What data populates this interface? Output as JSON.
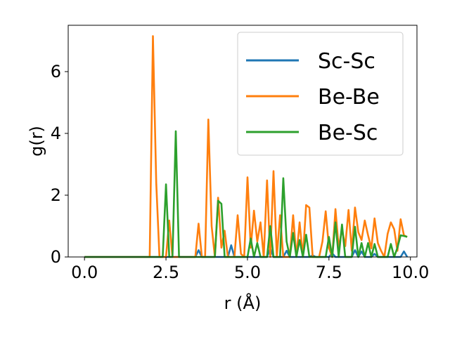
{
  "chart_data": {
    "type": "line",
    "xlabel": "r (Å)",
    "ylabel": "g(r)",
    "xlim": [
      -0.5,
      10.2
    ],
    "ylim": [
      0,
      7.5
    ],
    "xticks": [
      0.0,
      2.5,
      5.0,
      7.5,
      10.0
    ],
    "xtick_labels": [
      "0.0",
      "2.5",
      "5.0",
      "7.5",
      "10.0"
    ],
    "yticks": [
      0,
      2,
      4,
      6
    ],
    "ytick_labels": [
      "0",
      "2",
      "4",
      "6"
    ],
    "grid": false,
    "legend_position": "top-right",
    "series": [
      {
        "name": "Sc-Sc",
        "color": "#1f77b4",
        "points": [
          [
            0,
            0
          ],
          [
            3.4,
            0
          ],
          [
            3.5,
            0.22
          ],
          [
            3.6,
            0
          ],
          [
            4.4,
            0
          ],
          [
            4.5,
            0.38
          ],
          [
            4.6,
            0
          ],
          [
            5.6,
            0
          ],
          [
            5.7,
            0.28
          ],
          [
            5.8,
            0
          ],
          [
            6.1,
            0
          ],
          [
            6.2,
            0.2
          ],
          [
            6.3,
            0
          ],
          [
            6.9,
            0
          ],
          [
            7.0,
            0.05
          ],
          [
            7.1,
            0
          ],
          [
            7.5,
            0
          ],
          [
            7.6,
            0.12
          ],
          [
            7.7,
            0
          ],
          [
            8.2,
            0
          ],
          [
            8.3,
            0.22
          ],
          [
            8.4,
            0
          ],
          [
            8.5,
            0.18
          ],
          [
            8.6,
            0
          ],
          [
            8.8,
            0
          ],
          [
            8.9,
            0.1
          ],
          [
            9.0,
            0
          ],
          [
            9.7,
            0
          ],
          [
            9.8,
            0.18
          ],
          [
            9.9,
            0
          ]
        ]
      },
      {
        "name": "Be-Be",
        "color": "#ff7f0e",
        "points": [
          [
            0,
            0
          ],
          [
            2.0,
            0
          ],
          [
            2.1,
            7.15
          ],
          [
            2.2,
            2.4
          ],
          [
            2.3,
            0
          ],
          [
            2.5,
            0
          ],
          [
            2.6,
            1.18
          ],
          [
            2.7,
            0
          ],
          [
            3.4,
            0
          ],
          [
            3.5,
            1.08
          ],
          [
            3.6,
            0
          ],
          [
            3.7,
            0
          ],
          [
            3.8,
            4.45
          ],
          [
            3.9,
            1.0
          ],
          [
            4.0,
            0
          ],
          [
            4.1,
            1.92
          ],
          [
            4.2,
            0.3
          ],
          [
            4.3,
            0.85
          ],
          [
            4.4,
            0
          ],
          [
            4.6,
            0
          ],
          [
            4.7,
            1.35
          ],
          [
            4.8,
            0.1
          ],
          [
            4.9,
            0
          ],
          [
            5.0,
            2.58
          ],
          [
            5.1,
            0.3
          ],
          [
            5.2,
            1.5
          ],
          [
            5.3,
            0.5
          ],
          [
            5.4,
            1.12
          ],
          [
            5.5,
            0
          ],
          [
            5.6,
            2.48
          ],
          [
            5.7,
            0
          ],
          [
            5.8,
            2.78
          ],
          [
            5.9,
            0
          ],
          [
            6.0,
            1.35
          ],
          [
            6.1,
            0
          ],
          [
            6.3,
            0
          ],
          [
            6.4,
            1.35
          ],
          [
            6.5,
            0
          ],
          [
            6.6,
            1.12
          ],
          [
            6.7,
            0
          ],
          [
            6.8,
            1.68
          ],
          [
            6.9,
            1.6
          ],
          [
            7.0,
            0
          ],
          [
            7.2,
            0
          ],
          [
            7.3,
            0.5
          ],
          [
            7.4,
            1.48
          ],
          [
            7.5,
            0.3
          ],
          [
            7.6,
            0
          ],
          [
            7.7,
            1.55
          ],
          [
            7.8,
            0.3
          ],
          [
            7.9,
            0.9
          ],
          [
            8.0,
            0.35
          ],
          [
            8.1,
            1.52
          ],
          [
            8.2,
            0.2
          ],
          [
            8.3,
            1.6
          ],
          [
            8.4,
            0.8
          ],
          [
            8.5,
            0.55
          ],
          [
            8.6,
            1.18
          ],
          [
            8.7,
            0.7
          ],
          [
            8.8,
            0.28
          ],
          [
            8.9,
            1.25
          ],
          [
            9.0,
            0.45
          ],
          [
            9.1,
            0.2
          ],
          [
            9.2,
            0
          ],
          [
            9.3,
            0.75
          ],
          [
            9.4,
            1.12
          ],
          [
            9.5,
            0.9
          ],
          [
            9.6,
            0.2
          ],
          [
            9.7,
            1.22
          ],
          [
            9.8,
            0.7
          ],
          [
            9.9,
            0.65
          ]
        ]
      },
      {
        "name": "Be-Sc",
        "color": "#2ca02c",
        "points": [
          [
            0,
            0
          ],
          [
            2.4,
            0
          ],
          [
            2.5,
            2.35
          ],
          [
            2.6,
            0
          ],
          [
            2.7,
            0
          ],
          [
            2.8,
            4.07
          ],
          [
            2.9,
            0
          ],
          [
            4.0,
            0
          ],
          [
            4.1,
            1.82
          ],
          [
            4.2,
            1.72
          ],
          [
            4.3,
            0
          ],
          [
            5.0,
            0
          ],
          [
            5.1,
            0.6
          ],
          [
            5.2,
            0
          ],
          [
            5.3,
            0.45
          ],
          [
            5.4,
            0
          ],
          [
            5.6,
            0
          ],
          [
            5.7,
            1.0
          ],
          [
            5.8,
            0
          ],
          [
            6.0,
            0
          ],
          [
            6.1,
            2.55
          ],
          [
            6.2,
            0.5
          ],
          [
            6.3,
            0
          ],
          [
            6.4,
            0.78
          ],
          [
            6.5,
            0
          ],
          [
            6.6,
            0.55
          ],
          [
            6.7,
            0
          ],
          [
            6.8,
            0.72
          ],
          [
            6.9,
            0
          ],
          [
            7.4,
            0
          ],
          [
            7.5,
            0.65
          ],
          [
            7.6,
            0
          ],
          [
            7.7,
            1.12
          ],
          [
            7.8,
            0
          ],
          [
            7.9,
            1.05
          ],
          [
            8.0,
            0
          ],
          [
            8.2,
            0
          ],
          [
            8.3,
            0.98
          ],
          [
            8.4,
            0
          ],
          [
            8.5,
            0.45
          ],
          [
            8.6,
            0
          ],
          [
            8.7,
            0.45
          ],
          [
            8.8,
            0
          ],
          [
            8.9,
            0.42
          ],
          [
            9.0,
            0
          ],
          [
            9.3,
            0
          ],
          [
            9.4,
            0.42
          ],
          [
            9.5,
            0
          ],
          [
            9.6,
            0.3
          ],
          [
            9.7,
            0.7
          ],
          [
            9.8,
            0.68
          ],
          [
            9.9,
            0.65
          ]
        ]
      }
    ]
  }
}
